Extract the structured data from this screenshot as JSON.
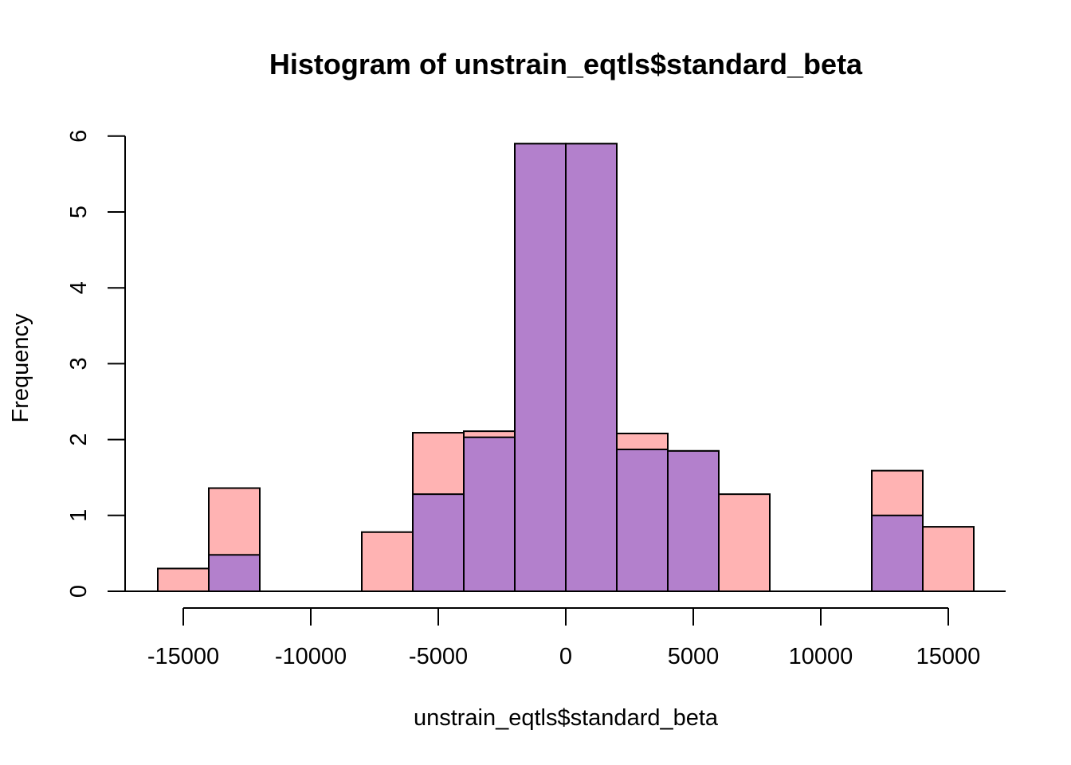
{
  "chart_data": {
    "type": "bar",
    "title": "Histogram of unstrain_eqtls$standard_beta",
    "xlabel": "unstrain_eqtls$standard_beta",
    "ylabel": "Frequency",
    "xlim": [
      -16000,
      16000
    ],
    "ylim": [
      0,
      6
    ],
    "x_ticks": [
      -15000,
      -10000,
      -5000,
      0,
      5000,
      10000,
      15000
    ],
    "x_tick_labels": [
      "-15000",
      "-10000",
      "-5000",
      "0",
      "5000",
      "10000",
      "15000"
    ],
    "y_ticks": [
      0,
      1,
      2,
      3,
      4,
      5,
      6
    ],
    "y_tick_labels": [
      "0",
      "1",
      "2",
      "3",
      "4",
      "5",
      "6"
    ],
    "grid": false,
    "series": [
      {
        "color": "#ffb3b3",
        "bins": [
          {
            "x0": -16000,
            "x1": -14000,
            "value": 0.3
          },
          {
            "x0": -14000,
            "x1": -12000,
            "value": 1.36
          },
          {
            "x0": -12000,
            "x1": -10000,
            "value": 0
          },
          {
            "x0": -10000,
            "x1": -8000,
            "value": 0
          },
          {
            "x0": -8000,
            "x1": -6000,
            "value": 0.78
          },
          {
            "x0": -6000,
            "x1": -4000,
            "value": 2.09
          },
          {
            "x0": -4000,
            "x1": -2000,
            "value": 2.11
          },
          {
            "x0": -2000,
            "x1": 0,
            "value": 5.9
          },
          {
            "x0": 0,
            "x1": 2000,
            "value": 5.9
          },
          {
            "x0": 2000,
            "x1": 4000,
            "value": 2.08
          },
          {
            "x0": 4000,
            "x1": 6000,
            "value": 1.85
          },
          {
            "x0": 6000,
            "x1": 8000,
            "value": 1.28
          },
          {
            "x0": 8000,
            "x1": 10000,
            "value": 0
          },
          {
            "x0": 10000,
            "x1": 12000,
            "value": 0
          },
          {
            "x0": 12000,
            "x1": 14000,
            "value": 1.59
          },
          {
            "x0": 14000,
            "x1": 16000,
            "value": 0.85
          }
        ]
      },
      {
        "color": "#b380cc",
        "bins": [
          {
            "x0": -14000,
            "x1": -12000,
            "value": 0.48
          },
          {
            "x0": -6000,
            "x1": -4000,
            "value": 1.28
          },
          {
            "x0": -4000,
            "x1": -2000,
            "value": 2.03
          },
          {
            "x0": -2000,
            "x1": 0,
            "value": 5.9
          },
          {
            "x0": 0,
            "x1": 2000,
            "value": 5.9
          },
          {
            "x0": 2000,
            "x1": 4000,
            "value": 1.87
          },
          {
            "x0": 4000,
            "x1": 6000,
            "value": 1.85
          },
          {
            "x0": 12000,
            "x1": 14000,
            "value": 1.0
          }
        ]
      }
    ]
  }
}
